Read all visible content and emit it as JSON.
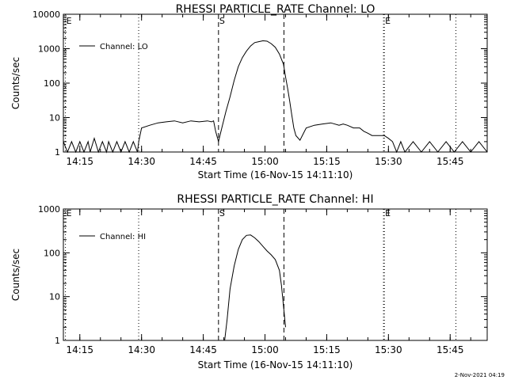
{
  "footer": {
    "timestamp": "2-Nov-2021 04:19"
  },
  "chart_data": [
    {
      "type": "line",
      "title": "RHESSI PARTICLE_RATE Channel: LO",
      "xlabel": "Start Time (16-Nov-15 14:11:10)",
      "ylabel": "Counts/sec",
      "yscale": "log",
      "ylim": [
        1,
        10000
      ],
      "x_start_min": 851,
      "x_end_min": 954,
      "x_tick_minutes": [
        855,
        870,
        885,
        900,
        915,
        930,
        945
      ],
      "x_tick_labels": [
        "14:15",
        "14:30",
        "14:45",
        "15:00",
        "15:15",
        "15:30",
        "15:45"
      ],
      "y_ticks": [
        1,
        10,
        100,
        1000,
        10000
      ],
      "y_tick_labels": [
        "1",
        "10",
        "100",
        "1000",
        "10000"
      ],
      "legend": {
        "label": "Channel: LO",
        "placement": "top-left"
      },
      "markers": [
        {
          "label": "E",
          "minute": 851.5,
          "style": "dotted"
        },
        {
          "label": "",
          "minute": 869.3,
          "style": "dotted"
        },
        {
          "label": "S",
          "minute": 888.7,
          "style": "dashed"
        },
        {
          "label": "",
          "minute": 904.6,
          "style": "dashed"
        },
        {
          "label": "",
          "minute": 928.8,
          "style": "dotted"
        },
        {
          "label": "E",
          "minute": 929.0,
          "style": "dotted"
        },
        {
          "label": "",
          "minute": 946.4,
          "style": "dotted"
        }
      ],
      "series": [
        {
          "name": "Channel: LO",
          "x": [
            851.0,
            852.0,
            853.0,
            854.0,
            855.0,
            856.0,
            857.0,
            857.5,
            858.5,
            859.5,
            860.5,
            861.5,
            862.0,
            863.0,
            864.0,
            865.0,
            866.0,
            867.0,
            868.0,
            869.0,
            869.3,
            870.0,
            872.0,
            874.0,
            876.0,
            878.0,
            880.0,
            882.0,
            884.0,
            886.0,
            887.0,
            887.5,
            888.0,
            888.7,
            889.5,
            890.5,
            891.5,
            892.5,
            893.5,
            894.5,
            895.5,
            896.5,
            897.5,
            898.5,
            899.5,
            900.5,
            901.5,
            902.5,
            903.5,
            904.5,
            905.0,
            905.5,
            906.0,
            906.5,
            907.0,
            907.5,
            908.5,
            910.0,
            912.0,
            914.0,
            916.0,
            918.0,
            919.0,
            920.0,
            921.5,
            923.0,
            924.0,
            925.0,
            926.0,
            927.0,
            928.0,
            929.0,
            930.0,
            931.0,
            932.0,
            933.0,
            934.0,
            936.0,
            938.0,
            940.0,
            942.0,
            944.0,
            946.0,
            948.0,
            950.0,
            952.0,
            954.0
          ],
          "y": [
            2,
            1,
            2,
            1,
            2,
            1,
            2,
            1,
            2.5,
            1,
            2,
            1,
            2,
            1,
            2,
            1,
            2,
            1,
            2,
            1,
            2,
            5,
            6,
            7,
            7.5,
            8,
            7,
            8,
            7.5,
            8,
            7.5,
            8,
            4,
            2,
            5,
            15,
            40,
            120,
            300,
            550,
            850,
            1200,
            1500,
            1600,
            1700,
            1650,
            1400,
            1100,
            700,
            350,
            150,
            70,
            30,
            12,
            5,
            3,
            2.2,
            5,
            6,
            6.5,
            7,
            6,
            6.5,
            6,
            5,
            5,
            4,
            3.5,
            3,
            3,
            3,
            3,
            2.5,
            2,
            1,
            2,
            1,
            2,
            1,
            2,
            1,
            2,
            1,
            2,
            1,
            2,
            1
          ]
        }
      ]
    },
    {
      "type": "line",
      "title": "RHESSI PARTICLE_RATE Channel: HI",
      "xlabel": "Start Time (16-Nov-15 14:11:10)",
      "ylabel": "Counts/sec",
      "yscale": "log",
      "ylim": [
        1,
        1000
      ],
      "x_start_min": 851,
      "x_end_min": 954,
      "x_tick_minutes": [
        855,
        870,
        885,
        900,
        915,
        930,
        945
      ],
      "x_tick_labels": [
        "14:15",
        "14:30",
        "14:45",
        "15:00",
        "15:15",
        "15:30",
        "15:45"
      ],
      "y_ticks": [
        1,
        10,
        100,
        1000
      ],
      "y_tick_labels": [
        "1",
        "10",
        "100",
        "1000"
      ],
      "legend": {
        "label": "Channel: HI",
        "placement": "top-left"
      },
      "markers": [
        {
          "label": "E",
          "minute": 851.5,
          "style": "dotted"
        },
        {
          "label": "",
          "minute": 869.3,
          "style": "dotted"
        },
        {
          "label": "S",
          "minute": 888.7,
          "style": "dashed"
        },
        {
          "label": "",
          "minute": 904.6,
          "style": "dashed"
        },
        {
          "label": "",
          "minute": 928.8,
          "style": "dotted"
        },
        {
          "label": "E",
          "minute": 929.0,
          "style": "dotted"
        },
        {
          "label": "",
          "minute": 946.4,
          "style": "dotted"
        }
      ],
      "series": [
        {
          "name": "Channel: HI",
          "x": [
            890.2,
            890.8,
            891.5,
            892.5,
            893.5,
            894.5,
            895.5,
            896.5,
            897.5,
            898.5,
            899.5,
            900.5,
            901.5,
            902.5,
            903.5,
            904.0,
            904.5,
            905.0
          ],
          "y": [
            1,
            3,
            15,
            50,
            120,
            200,
            250,
            255,
            220,
            180,
            140,
            110,
            90,
            70,
            40,
            18,
            6,
            2
          ]
        }
      ]
    }
  ]
}
